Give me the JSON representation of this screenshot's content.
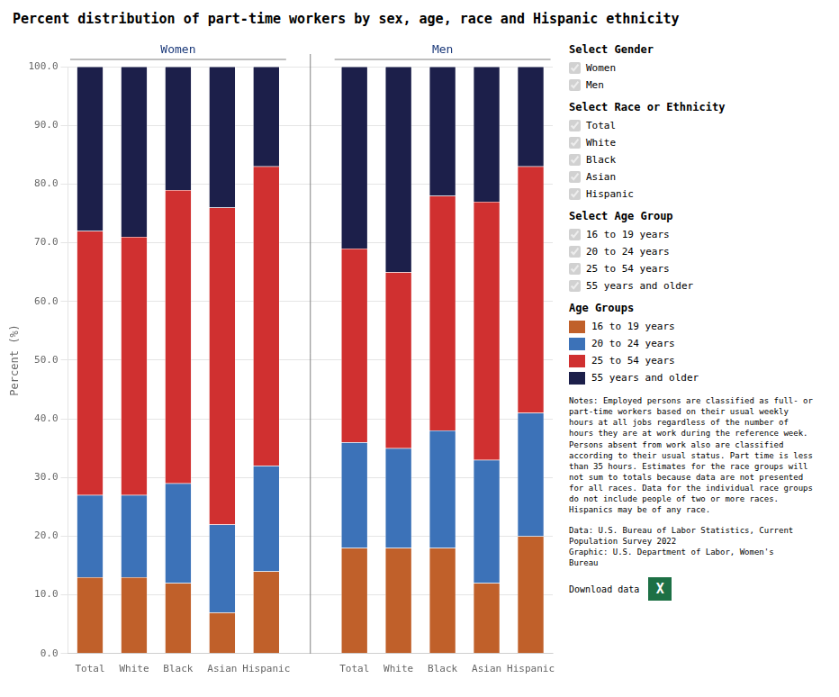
{
  "chart_data": {
    "type": "bar",
    "title": "Percent distribution of part-time workers by sex, age, race and Hispanic ethnicity",
    "ylabel": "Percent (%)",
    "categories": [
      "Total",
      "White",
      "Black",
      "Asian",
      "Hispanic",
      null,
      "Total",
      "White",
      "Black",
      "Asian",
      "Hispanic"
    ],
    "group_labels": [
      "Women",
      "Men"
    ],
    "series": [
      {
        "name": "16 to 19 years",
        "color": "#c0602a",
        "values": [
          13.0,
          13.0,
          12.0,
          7.0,
          14.0,
          null,
          18.0,
          18.0,
          18.0,
          12.0,
          20.0
        ]
      },
      {
        "name": "20 to 24 years",
        "color": "#3c72b8",
        "values": [
          14.0,
          14.0,
          17.0,
          15.0,
          18.0,
          null,
          18.0,
          17.0,
          20.0,
          21.0,
          21.0
        ]
      },
      {
        "name": "25 to 54 years",
        "color": "#d03030",
        "values": [
          45.0,
          44.0,
          50.0,
          54.0,
          51.0,
          null,
          33.0,
          30.0,
          40.0,
          44.0,
          42.0
        ]
      },
      {
        "name": "55 years and older",
        "color": "#1c1f4a",
        "values": [
          28.0,
          29.0,
          21.0,
          24.0,
          17.0,
          null,
          31.0,
          35.0,
          22.0,
          23.0,
          17.0
        ]
      }
    ],
    "stacked": true,
    "grid": true,
    "ylim": [
      0,
      100
    ],
    "yticks": [
      {
        "value": 0,
        "label": "0.0"
      },
      {
        "value": 10,
        "label": "10.0"
      },
      {
        "value": 20,
        "label": "20.0"
      },
      {
        "value": 30,
        "label": "30.0"
      },
      {
        "value": 40,
        "label": "40.0"
      },
      {
        "value": 50,
        "label": "50.0"
      },
      {
        "value": 60,
        "label": "60.0"
      },
      {
        "value": 70,
        "label": "70.0"
      },
      {
        "value": 80,
        "label": "80.0"
      },
      {
        "value": 90,
        "label": "90.0"
      },
      {
        "value": 100,
        "label": "100.0"
      }
    ],
    "legend": "right",
    "legend_title": "Age Groups"
  },
  "side_panel": {
    "sections": [
      {
        "heading": "Select Gender",
        "items": [
          "Women",
          "Men"
        ]
      },
      {
        "heading": "Select Race or Ethnicity",
        "items": [
          "Total",
          "White",
          "Black",
          "Asian",
          "Hispanic"
        ]
      },
      {
        "heading": "Select Age Group",
        "items": [
          "16 to 19 years",
          "20 to 24 years",
          "25 to 54 years",
          "55 years and older"
        ]
      }
    ],
    "notes": "Notes: Employed persons are classified as full- or\npart-time workers based on their usual weekly\nhours at all jobs regardless of the number of\nhours they are at work during the reference week.\nPersons absent from work also are classified\naccording to their usual status. Part time is less\nthan 35 hours. Estimates for the race groups will\nnot sum to totals because data are not presented\nfor all races. Data for the individual race groups\ndo not include people of two or more races.\nHispanics may be of any race.",
    "source": "Data: U.S. Bureau of Labor Statistics, Current\nPopulation Survey 2022\nGraphic: U.S. Department of Labor, Women's\nBureau",
    "download": "Download data",
    "download_icon": "X"
  }
}
